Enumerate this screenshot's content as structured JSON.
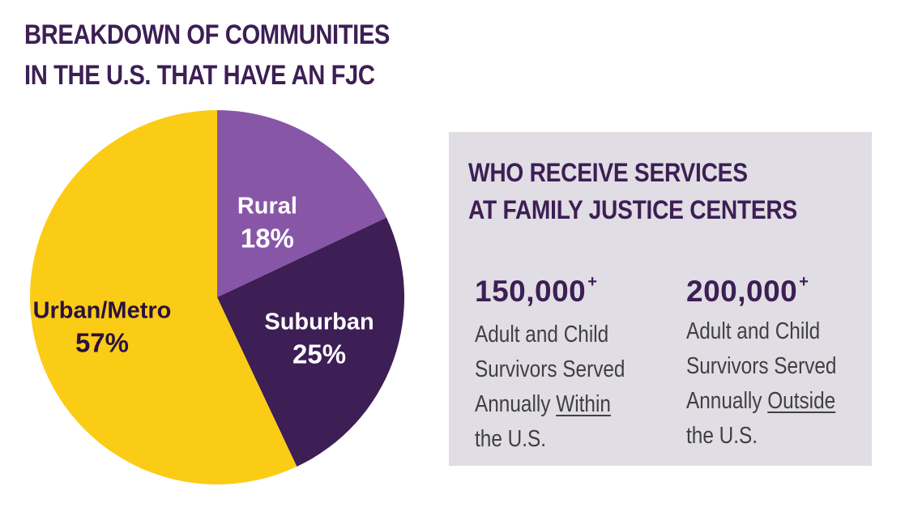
{
  "title_lines": [
    "BREAKDOWN OF COMMUNITIES",
    "IN THE U.S. THAT HAVE AN FJC"
  ],
  "chart_data": {
    "type": "pie",
    "title": "BREAKDOWN OF COMMUNITIES IN THE U.S. THAT HAVE AN FJC",
    "slices": [
      {
        "label": "Rural",
        "value": 18,
        "value_label": "18%",
        "color": "#8856a7"
      },
      {
        "label": "Suburban",
        "value": 25,
        "value_label": "25%",
        "color": "#3d1e55"
      },
      {
        "label": "Urban/Metro",
        "value": 57,
        "value_label": "57%",
        "color": "#fbcc15"
      }
    ],
    "start": "12 o'clock",
    "direction": "clockwise",
    "legend": "none"
  },
  "colors": {
    "dark_purple": "#3d1e55",
    "light_purple": "#8856a7",
    "yellow": "#fbcc15",
    "panel_bg": "#e1dde4"
  },
  "panel": {
    "title_lines": [
      "WHO RECEIVE SERVICES",
      "AT FAMILY JUSTICE CENTERS"
    ],
    "stats": [
      {
        "number": "150,000",
        "superscript": "+",
        "line1": "Adult and Child",
        "line2": "Survivors Served",
        "line3_prefix": "Annually ",
        "line3_emphasis": "Within",
        "line4": "the U.S."
      },
      {
        "number": "200,000",
        "superscript": "+",
        "line1": "Adult and Child",
        "line2": "Survivors Served",
        "line3_prefix": "Annually ",
        "line3_emphasis": "Outside",
        "line4": "the U.S."
      }
    ]
  }
}
